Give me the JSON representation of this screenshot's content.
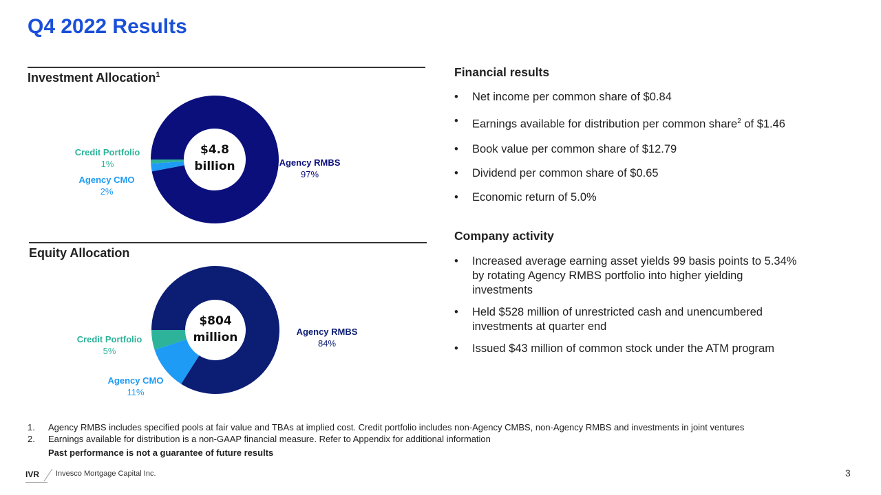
{
  "title": "Q4 2022 Results",
  "investment": {
    "heading": "Investment Allocation",
    "heading_sup": "1",
    "center_line1": "$4.8",
    "center_line2": "billion"
  },
  "equity": {
    "heading": "Equity Allocation",
    "center_line1": "$804",
    "center_line2": "million"
  },
  "chart_data": [
    {
      "type": "pie",
      "title": "Investment Allocation",
      "total": "$4.8 billion",
      "categories": [
        "Agency RMBS",
        "Agency CMO",
        "Credit Portfolio"
      ],
      "values": [
        97,
        2,
        1
      ],
      "labels": [
        "97%",
        "2%",
        "1%"
      ],
      "colors": [
        "#0b0f7c",
        "#1d9bf5",
        "#2db39a"
      ]
    },
    {
      "type": "pie",
      "title": "Equity Allocation",
      "total": "$804 million",
      "categories": [
        "Agency RMBS",
        "Agency CMO",
        "Credit Portfolio"
      ],
      "values": [
        84,
        11,
        5
      ],
      "labels": [
        "84%",
        "11%",
        "5%"
      ],
      "colors": [
        "#0c1d74",
        "#1d9bf5",
        "#2db39a"
      ]
    }
  ],
  "financial": {
    "heading": "Financial results",
    "items": [
      "Net income per common share of $0.84",
      "Earnings available for distribution per common share",
      "Book value per common share of $12.79",
      "Dividend per common share of $0.65",
      "Economic return of 5.0%"
    ],
    "item2_sup": "2",
    "item2_tail": " of $1.46"
  },
  "activity": {
    "heading": "Company activity",
    "items": [
      "Increased average earning asset yields 99 basis points to 5.34% by rotating Agency RMBS portfolio into higher yielding investments",
      "Held $528 million of unrestricted cash and unencumbered investments at quarter end",
      "Issued $43 million of common stock under the ATM program"
    ]
  },
  "footnotes": [
    {
      "num": "1.",
      "text": "Agency RMBS includes specified pools at fair value and TBAs at implied cost. Credit portfolio includes non-Agency CMBS, non-Agency RMBS and investments in joint ventures"
    },
    {
      "num": "2.",
      "text": "Earnings available for distribution is a non-GAAP financial measure. Refer to Appendix for additional information"
    }
  ],
  "disclaimer": "Past performance is not a guarantee of future results",
  "logo": {
    "ticker": "IVR",
    "company": "Invesco Mortgage Capital Inc."
  },
  "page_number": "3"
}
